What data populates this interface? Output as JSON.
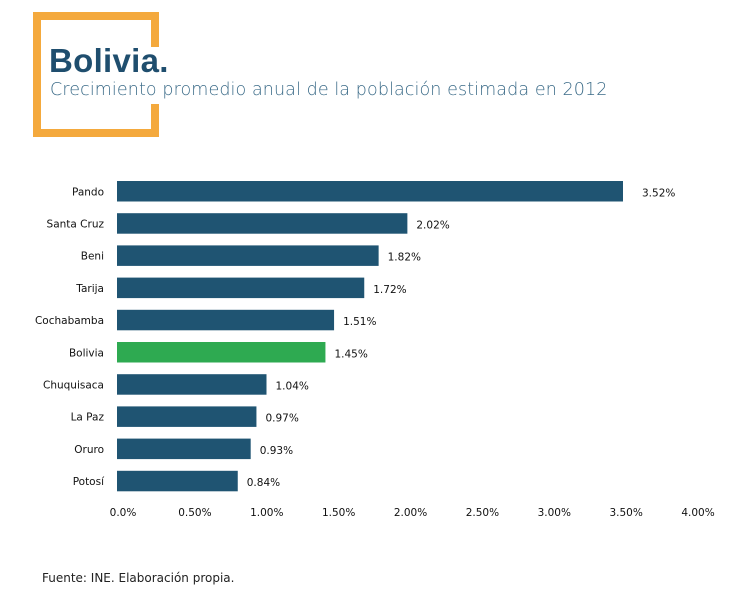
{
  "header": {
    "title": "Bolivia.",
    "subtitle": "Crecimiento promedio anual de la población estimada en 2012"
  },
  "colors": {
    "frame": "#f4a93d",
    "title": "#1f4e6e",
    "bar_default": "#1f5472",
    "bar_highlight": "#2eaa51"
  },
  "chart_data": {
    "type": "bar",
    "orientation": "horizontal",
    "title": "Crecimiento promedio anual de la población estimada en 2012",
    "xlabel": "",
    "ylabel": "",
    "categories": [
      "Pando",
      "Santa Cruz",
      "Beni",
      "Tarija",
      "Cochabamba",
      "Bolivia",
      "Chuquisaca",
      "La Paz",
      "Oruro",
      "Potosí"
    ],
    "values": [
      3.52,
      2.02,
      1.82,
      1.72,
      1.51,
      1.45,
      1.04,
      0.97,
      0.93,
      0.84
    ],
    "value_labels": [
      "3.52%",
      "2.02%",
      "1.82%",
      "1.72%",
      "1.51%",
      "1.45%",
      "1.04%",
      "0.97%",
      "0.93%",
      "0.84%"
    ],
    "highlight": "Bolivia",
    "unit": "%",
    "xlim": [
      0,
      4.0
    ],
    "xticks": [
      0,
      0.5,
      1.0,
      1.5,
      2.0,
      2.5,
      3.0,
      3.5,
      4.0
    ],
    "xtick_labels": [
      "0.0%",
      "0.50%",
      "1.00%",
      "1.50%",
      "2.00%",
      "2.50%",
      "3.00%",
      "3.50%",
      "4.00%"
    ],
    "grid": false,
    "legend": "none"
  },
  "footer": {
    "source": "Fuente: INE. Elaboración propia."
  }
}
